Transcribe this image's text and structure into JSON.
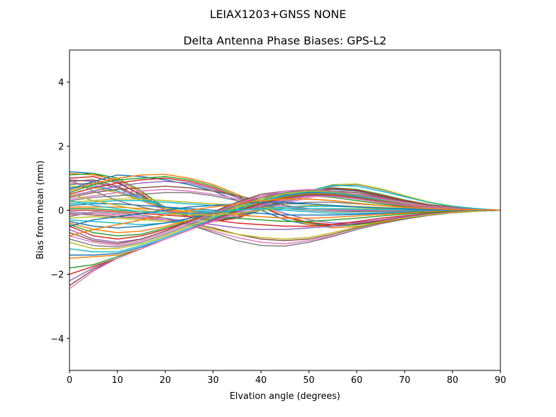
{
  "suptitle": "LEIAX1203+GNSS  NONE",
  "chart_data": {
    "type": "line",
    "title": "Delta Antenna Phase Biases: GPS-L2",
    "xlabel": "Elvation angle (degrees)",
    "ylabel": "Bias from mean (mm)",
    "xlim": [
      0,
      90
    ],
    "ylim": [
      -5,
      5
    ],
    "xticks": [
      0,
      10,
      20,
      30,
      40,
      50,
      60,
      70,
      80,
      90
    ],
    "yticks": [
      -4,
      -2,
      0,
      2,
      4
    ],
    "ytick_labels": [
      "−4",
      "−2",
      "0",
      "2",
      "4"
    ],
    "grid": false,
    "x": [
      0,
      5,
      10,
      15,
      20,
      25,
      30,
      35,
      40,
      45,
      50,
      55,
      60,
      65,
      70,
      75,
      80,
      85,
      90
    ],
    "colors": [
      "#1f77b4",
      "#ff7f0e",
      "#2ca02c",
      "#d62728",
      "#9467bd",
      "#8c564b",
      "#e377c2",
      "#7f7f7f",
      "#bcbd22",
      "#17becf"
    ],
    "series": [
      {
        "values": [
          1.2,
          1.15,
          0.9,
          0.45,
          0.0,
          -0.2,
          -0.3,
          -0.2,
          0.05,
          0.3,
          0.55,
          0.65,
          0.6,
          0.45,
          0.3,
          0.15,
          0.08,
          0.03,
          0
        ]
      },
      {
        "values": [
          1.15,
          1.1,
          0.95,
          0.55,
          0.1,
          -0.1,
          -0.25,
          -0.2,
          0.0,
          0.25,
          0.5,
          0.6,
          0.55,
          0.4,
          0.28,
          0.15,
          0.08,
          0.03,
          0
        ]
      },
      {
        "values": [
          1.1,
          1.15,
          1.0,
          0.6,
          0.05,
          -0.15,
          -0.3,
          -0.25,
          0.0,
          0.3,
          0.6,
          0.7,
          0.65,
          0.5,
          0.32,
          0.18,
          0.1,
          0.04,
          0
        ]
      },
      {
        "values": [
          1.0,
          1.05,
          0.85,
          0.5,
          0.0,
          -0.2,
          -0.35,
          -0.25,
          0.05,
          0.3,
          0.55,
          0.68,
          0.62,
          0.47,
          0.3,
          0.17,
          0.09,
          0.03,
          0
        ]
      },
      {
        "values": [
          0.95,
          0.9,
          0.7,
          0.35,
          0.0,
          -0.15,
          -0.25,
          -0.2,
          0.0,
          0.25,
          0.45,
          0.55,
          0.5,
          0.38,
          0.25,
          0.14,
          0.07,
          0.03,
          0
        ]
      },
      {
        "values": [
          0.9,
          0.95,
          0.75,
          0.4,
          0.05,
          -0.1,
          -0.2,
          -0.15,
          0.05,
          0.3,
          0.5,
          0.6,
          0.55,
          0.42,
          0.28,
          0.16,
          0.08,
          0.03,
          0
        ]
      },
      {
        "values": [
          0.85,
          0.8,
          0.6,
          0.3,
          0.0,
          -0.1,
          -0.15,
          -0.1,
          0.05,
          0.2,
          0.4,
          0.5,
          0.45,
          0.35,
          0.24,
          0.13,
          0.07,
          0.02,
          0
        ]
      },
      {
        "values": [
          0.8,
          0.85,
          0.7,
          0.4,
          0.1,
          0.0,
          -0.1,
          -0.05,
          0.1,
          0.3,
          0.55,
          0.75,
          0.8,
          0.65,
          0.45,
          0.25,
          0.13,
          0.05,
          0
        ]
      },
      {
        "values": [
          0.75,
          0.7,
          0.55,
          0.3,
          0.05,
          -0.05,
          -0.1,
          -0.05,
          0.1,
          0.35,
          0.6,
          0.8,
          0.82,
          0.67,
          0.46,
          0.26,
          0.13,
          0.05,
          0
        ]
      },
      {
        "values": [
          0.7,
          0.75,
          0.6,
          0.35,
          0.1,
          0.0,
          -0.05,
          0.0,
          0.15,
          0.35,
          0.6,
          0.78,
          0.75,
          0.6,
          0.42,
          0.24,
          0.12,
          0.05,
          0
        ]
      },
      {
        "values": [
          0.65,
          0.9,
          1.1,
          1.05,
          0.95,
          0.8,
          0.6,
          0.3,
          0.0,
          -0.3,
          -0.45,
          -0.5,
          -0.45,
          -0.35,
          -0.25,
          -0.15,
          -0.08,
          -0.03,
          0
        ]
      },
      {
        "values": [
          0.6,
          0.85,
          1.0,
          1.1,
          1.12,
          1.0,
          0.8,
          0.5,
          0.15,
          -0.2,
          -0.45,
          -0.55,
          -0.5,
          -0.4,
          -0.28,
          -0.16,
          -0.08,
          -0.03,
          0
        ]
      },
      {
        "values": [
          0.55,
          0.8,
          0.95,
          1.0,
          1.05,
          0.95,
          0.75,
          0.45,
          0.1,
          -0.2,
          -0.4,
          -0.5,
          -0.45,
          -0.36,
          -0.25,
          -0.14,
          -0.07,
          -0.03,
          0
        ]
      },
      {
        "values": [
          0.5,
          0.7,
          0.85,
          0.95,
          1.0,
          0.9,
          0.7,
          0.4,
          0.1,
          -0.2,
          -0.38,
          -0.45,
          -0.42,
          -0.33,
          -0.23,
          -0.13,
          -0.07,
          -0.02,
          0
        ]
      },
      {
        "values": [
          0.45,
          0.6,
          0.75,
          0.85,
          0.9,
          0.85,
          0.65,
          0.4,
          0.15,
          -0.1,
          -0.3,
          -0.4,
          -0.38,
          -0.3,
          -0.21,
          -0.12,
          -0.06,
          -0.02,
          0
        ]
      },
      {
        "values": [
          0.4,
          0.55,
          0.65,
          0.7,
          0.75,
          0.7,
          0.6,
          0.45,
          0.3,
          0.15,
          0.05,
          0.0,
          -0.02,
          -0.03,
          -0.03,
          -0.02,
          -0.01,
          0.0,
          0
        ]
      },
      {
        "values": [
          0.35,
          0.45,
          0.55,
          0.6,
          0.65,
          0.6,
          0.5,
          0.35,
          0.2,
          0.1,
          0.05,
          0.02,
          0.0,
          0.0,
          0.0,
          0.0,
          0.0,
          0.0,
          0
        ]
      },
      {
        "values": [
          0.3,
          0.4,
          0.45,
          0.5,
          0.55,
          0.55,
          0.45,
          0.3,
          0.15,
          0.05,
          0.0,
          -0.05,
          -0.05,
          -0.04,
          -0.03,
          -0.02,
          -0.01,
          0.0,
          0
        ]
      },
      {
        "values": [
          0.25,
          0.3,
          0.35,
          0.35,
          0.3,
          0.25,
          0.2,
          0.15,
          0.1,
          0.05,
          0.05,
          0.05,
          0.05,
          0.04,
          0.03,
          0.02,
          0.01,
          0.0,
          0
        ]
      },
      {
        "values": [
          0.2,
          0.25,
          0.3,
          0.3,
          0.25,
          0.2,
          0.15,
          0.1,
          0.05,
          0.0,
          -0.05,
          -0.1,
          -0.1,
          -0.08,
          -0.06,
          -0.04,
          -0.02,
          -0.01,
          0
        ]
      },
      {
        "values": [
          0.15,
          0.2,
          0.2,
          0.15,
          0.1,
          0.05,
          0.0,
          -0.05,
          -0.1,
          -0.15,
          -0.15,
          -0.15,
          -0.13,
          -0.1,
          -0.07,
          -0.04,
          -0.02,
          -0.01,
          0
        ]
      },
      {
        "values": [
          0.1,
          0.1,
          0.1,
          0.05,
          0.0,
          -0.05,
          -0.1,
          -0.15,
          -0.2,
          -0.25,
          -0.25,
          -0.22,
          -0.18,
          -0.13,
          -0.09,
          -0.05,
          -0.03,
          -0.01,
          0
        ]
      },
      {
        "values": [
          0.05,
          0.05,
          0.0,
          -0.05,
          -0.1,
          -0.15,
          -0.2,
          -0.25,
          -0.3,
          -0.35,
          -0.35,
          -0.3,
          -0.25,
          -0.18,
          -0.12,
          -0.07,
          -0.04,
          -0.01,
          0
        ]
      },
      {
        "values": [
          0.0,
          0.0,
          -0.05,
          -0.1,
          -0.15,
          -0.2,
          -0.3,
          -0.4,
          -0.45,
          -0.5,
          -0.5,
          -0.45,
          -0.35,
          -0.25,
          -0.17,
          -0.1,
          -0.05,
          -0.02,
          0
        ]
      },
      {
        "values": [
          -0.05,
          -0.1,
          -0.15,
          -0.2,
          -0.25,
          -0.35,
          -0.45,
          -0.55,
          -0.6,
          -0.6,
          -0.55,
          -0.5,
          -0.4,
          -0.3,
          -0.2,
          -0.12,
          -0.06,
          -0.02,
          0
        ]
      },
      {
        "values": [
          -0.1,
          -0.15,
          -0.2,
          -0.25,
          -0.3,
          -0.4,
          -0.55,
          -0.75,
          -0.9,
          -0.95,
          -0.9,
          -0.75,
          -0.55,
          -0.38,
          -0.25,
          -0.15,
          -0.08,
          -0.03,
          0
        ]
      },
      {
        "values": [
          -0.15,
          -0.1,
          -0.15,
          -0.2,
          -0.3,
          -0.45,
          -0.65,
          -0.85,
          -1.0,
          -1.05,
          -0.95,
          -0.8,
          -0.6,
          -0.42,
          -0.28,
          -0.16,
          -0.08,
          -0.03,
          0
        ]
      },
      {
        "values": [
          -0.2,
          -0.05,
          -0.1,
          -0.15,
          -0.25,
          -0.45,
          -0.7,
          -0.95,
          -1.1,
          -1.12,
          -1.0,
          -0.82,
          -0.6,
          -0.42,
          -0.28,
          -0.16,
          -0.08,
          -0.03,
          0
        ]
      },
      {
        "values": [
          -0.25,
          -0.2,
          -0.25,
          -0.3,
          -0.35,
          -0.45,
          -0.6,
          -0.75,
          -0.85,
          -0.9,
          -0.85,
          -0.7,
          -0.52,
          -0.36,
          -0.24,
          -0.14,
          -0.07,
          -0.03,
          0
        ]
      },
      {
        "values": [
          -0.3,
          -0.35,
          -0.4,
          -0.45,
          -0.4,
          -0.3,
          -0.2,
          -0.1,
          0.0,
          0.05,
          0.05,
          0.04,
          0.03,
          0.02,
          0.01,
          0.0,
          0.0,
          0.0,
          0
        ]
      },
      {
        "values": [
          -0.35,
          -0.5,
          -0.55,
          -0.5,
          -0.4,
          -0.25,
          -0.1,
          0.05,
          0.15,
          0.2,
          0.2,
          0.15,
          0.1,
          0.07,
          0.04,
          0.02,
          0.01,
          0.0,
          0
        ]
      },
      {
        "values": [
          -0.4,
          -0.6,
          -0.7,
          -0.65,
          -0.5,
          -0.3,
          -0.1,
          0.1,
          0.25,
          0.35,
          0.35,
          0.3,
          0.22,
          0.15,
          0.09,
          0.05,
          0.02,
          0.01,
          0
        ]
      },
      {
        "values": [
          -0.45,
          -0.7,
          -0.8,
          -0.75,
          -0.55,
          -0.35,
          -0.1,
          0.15,
          0.35,
          0.45,
          0.45,
          0.4,
          0.3,
          0.2,
          0.12,
          0.07,
          0.03,
          0.01,
          0
        ]
      },
      {
        "values": [
          -0.5,
          -0.8,
          -0.9,
          -0.8,
          -0.6,
          -0.35,
          -0.05,
          0.2,
          0.4,
          0.5,
          0.5,
          0.45,
          0.35,
          0.24,
          0.15,
          0.08,
          0.04,
          0.01,
          0
        ]
      },
      {
        "values": [
          -0.6,
          -0.9,
          -1.0,
          -0.9,
          -0.65,
          -0.35,
          -0.05,
          0.25,
          0.45,
          0.55,
          0.55,
          0.5,
          0.4,
          0.28,
          0.17,
          0.09,
          0.04,
          0.01,
          0
        ]
      },
      {
        "values": [
          -0.7,
          -0.95,
          -1.05,
          -0.9,
          -0.65,
          -0.35,
          -0.05,
          0.25,
          0.5,
          0.6,
          0.6,
          0.55,
          0.42,
          0.3,
          0.18,
          0.1,
          0.05,
          0.02,
          0
        ]
      },
      {
        "values": [
          -0.8,
          -1.0,
          -1.1,
          -0.95,
          -0.7,
          -0.4,
          -0.1,
          0.2,
          0.45,
          0.6,
          0.65,
          0.6,
          0.48,
          0.34,
          0.21,
          0.11,
          0.05,
          0.02,
          0
        ]
      },
      {
        "values": [
          -0.9,
          -1.1,
          -1.15,
          -1.0,
          -0.75,
          -0.45,
          -0.15,
          0.15,
          0.4,
          0.55,
          0.62,
          0.58,
          0.47,
          0.33,
          0.2,
          0.11,
          0.05,
          0.02,
          0
        ]
      },
      {
        "values": [
          -1.0,
          -1.2,
          -1.2,
          -1.05,
          -0.8,
          -0.5,
          -0.2,
          0.1,
          0.35,
          0.52,
          0.6,
          0.56,
          0.45,
          0.32,
          0.2,
          0.1,
          0.05,
          0.02,
          0
        ]
      },
      {
        "values": [
          -1.2,
          -1.3,
          -1.3,
          -1.1,
          -0.85,
          -0.55,
          -0.25,
          0.05,
          0.3,
          0.48,
          0.57,
          0.54,
          0.44,
          0.31,
          0.19,
          0.1,
          0.05,
          0.02,
          0
        ]
      },
      {
        "values": [
          -1.4,
          -1.4,
          -1.35,
          -1.15,
          -0.9,
          -0.6,
          -0.3,
          0.0,
          0.25,
          0.45,
          0.55,
          0.52,
          0.42,
          0.3,
          0.18,
          0.1,
          0.05,
          0.02,
          0
        ]
      },
      {
        "values": [
          -1.5,
          -1.45,
          -1.4,
          -1.2,
          -0.9,
          -0.6,
          -0.3,
          0.0,
          0.25,
          0.42,
          0.52,
          0.5,
          0.4,
          0.29,
          0.18,
          0.1,
          0.05,
          0.02,
          0
        ]
      },
      {
        "values": [
          -1.8,
          -1.7,
          -1.45,
          -1.2,
          -0.9,
          -0.6,
          -0.3,
          0.0,
          0.22,
          0.4,
          0.5,
          0.48,
          0.39,
          0.28,
          0.17,
          0.09,
          0.04,
          0.02,
          0
        ]
      },
      {
        "values": [
          -2.0,
          -1.75,
          -1.5,
          -1.2,
          -0.9,
          -0.6,
          -0.3,
          -0.02,
          0.2,
          0.38,
          0.48,
          0.47,
          0.38,
          0.27,
          0.17,
          0.09,
          0.04,
          0.02,
          0
        ]
      },
      {
        "values": [
          -2.2,
          -1.8,
          -1.5,
          -1.2,
          -0.9,
          -0.6,
          -0.32,
          -0.05,
          0.18,
          0.36,
          0.46,
          0.45,
          0.37,
          0.26,
          0.16,
          0.09,
          0.04,
          0.02,
          0
        ]
      },
      {
        "values": [
          -2.35,
          -1.85,
          -1.5,
          -1.2,
          -0.9,
          -0.62,
          -0.34,
          -0.07,
          0.16,
          0.34,
          0.44,
          0.44,
          0.36,
          0.26,
          0.16,
          0.09,
          0.04,
          0.02,
          0
        ]
      },
      {
        "values": [
          -2.45,
          -1.9,
          -1.5,
          -1.2,
          -0.9,
          -0.62,
          -0.35,
          -0.08,
          0.15,
          0.33,
          0.43,
          0.43,
          0.35,
          0.25,
          0.16,
          0.08,
          0.04,
          0.02,
          0
        ]
      },
      {
        "values": [
          0.95,
          0.6,
          0.3,
          0.1,
          -0.05,
          -0.1,
          -0.1,
          0.0,
          0.1,
          0.2,
          0.25,
          0.25,
          0.2,
          0.15,
          0.1,
          0.05,
          0.03,
          0.01,
          0
        ]
      },
      {
        "values": [
          0.5,
          0.3,
          0.15,
          0.0,
          -0.1,
          -0.15,
          -0.15,
          -0.1,
          0.0,
          0.1,
          0.15,
          0.15,
          0.12,
          0.09,
          0.06,
          0.03,
          0.02,
          0.01,
          0
        ]
      },
      {
        "values": [
          0.3,
          0.15,
          0.05,
          -0.05,
          -0.1,
          -0.1,
          -0.05,
          0.0,
          0.05,
          0.1,
          0.12,
          0.12,
          0.1,
          0.07,
          0.05,
          0.03,
          0.01,
          0.0,
          0
        ]
      },
      {
        "values": [
          -0.5,
          -0.3,
          -0.2,
          -0.1,
          0.0,
          0.1,
          0.15,
          0.2,
          0.25,
          0.25,
          0.2,
          0.15,
          0.1,
          0.07,
          0.04,
          0.02,
          0.01,
          0.0,
          0
        ]
      },
      {
        "values": [
          -0.8,
          -0.6,
          -0.45,
          -0.3,
          -0.15,
          0.0,
          0.1,
          0.2,
          0.3,
          0.35,
          0.35,
          0.3,
          0.22,
          0.15,
          0.09,
          0.05,
          0.02,
          0.01,
          0
        ]
      }
    ]
  }
}
